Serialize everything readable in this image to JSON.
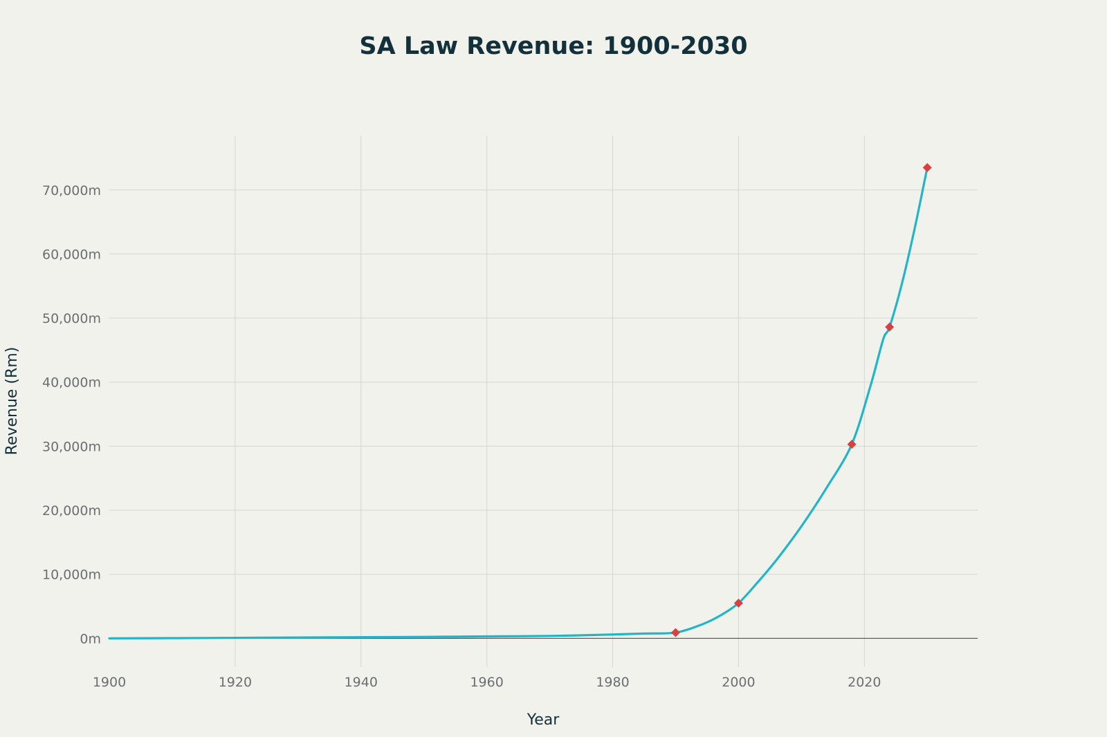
{
  "chart_data": {
    "type": "line",
    "title": "SA Law Revenue: 1900-2030",
    "xlabel": "Year",
    "ylabel": "Revenue (Rm)",
    "xlim": [
      1900,
      2038
    ],
    "ylim": [
      -4500,
      78500
    ],
    "x_ticks": [
      1900,
      1920,
      1940,
      1960,
      1980,
      2000,
      2020
    ],
    "x_tick_labels": [
      "1900",
      "1920",
      "1940",
      "1960",
      "1980",
      "2000",
      "2020"
    ],
    "y_ticks": [
      0,
      10000,
      20000,
      30000,
      40000,
      50000,
      60000,
      70000
    ],
    "y_tick_labels": [
      "0m",
      "10,000m",
      "20,000m",
      "30,000m",
      "40,000m",
      "50,000m",
      "60,000m",
      "70,000m"
    ],
    "grid": true,
    "legend": "none",
    "colors": {
      "line": "#21b5c8",
      "markers": "#d94040",
      "background": "#f2f2ed"
    },
    "series": [
      {
        "x": [
          1900,
          1910,
          1920,
          1930,
          1940,
          1950,
          1960,
          1970,
          1980,
          1985,
          1990,
          1994,
          1997,
          2000,
          2003,
          2006,
          2010,
          2014,
          2018,
          2021,
          2023,
          2024,
          2026,
          2028,
          2030
        ],
        "values": [
          0,
          30,
          80,
          130,
          180,
          230,
          300,
          380,
          600,
          750,
          900,
          2100,
          3500,
          5500,
          8700,
          12200,
          17500,
          23500,
          30300,
          39500,
          46700,
          48600,
          55500,
          64000,
          73500
        ]
      }
    ],
    "markers": {
      "x": [
        1990,
        2000,
        2018,
        2024,
        2030
      ],
      "values": [
        900,
        5500,
        30300,
        48600,
        73500
      ]
    }
  }
}
